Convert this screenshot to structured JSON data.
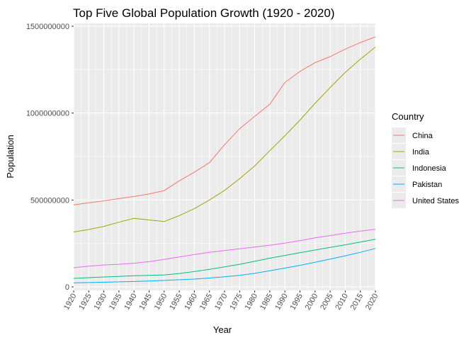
{
  "chart_data": {
    "type": "line",
    "title": "Top Five Global Population Growth (1920 - 2020)",
    "xlabel": "Year",
    "ylabel": "Population",
    "xlim": [
      1920,
      2020
    ],
    "ylim": [
      0,
      1500000000
    ],
    "x_ticks": [
      1920,
      1925,
      1930,
      1935,
      1940,
      1945,
      1950,
      1955,
      1960,
      1965,
      1970,
      1975,
      1980,
      1985,
      1990,
      1995,
      2000,
      2005,
      2010,
      2015,
      2020
    ],
    "y_ticks": [
      0,
      500000000,
      1000000000,
      1500000000
    ],
    "grid": true,
    "legend": {
      "title": "Country",
      "position": "right"
    },
    "x": [
      1920,
      1925,
      1930,
      1935,
      1940,
      1945,
      1950,
      1955,
      1960,
      1965,
      1970,
      1975,
      1980,
      1985,
      1990,
      1995,
      2000,
      2005,
      2010,
      2015,
      2020
    ],
    "series": [
      {
        "name": "China",
        "color": "#F8766D",
        "values": [
          472000000,
          484000000,
          495000000,
          508000000,
          520000000,
          535000000,
          554000000,
          610000000,
          660000000,
          715000000,
          818000000,
          910000000,
          981000000,
          1051000000,
          1176000000,
          1240000000,
          1290000000,
          1325000000,
          1368000000,
          1406000000,
          1439000000
        ]
      },
      {
        "name": "India",
        "color": "#A3A500",
        "values": [
          316000000,
          330000000,
          348000000,
          372000000,
          394000000,
          385000000,
          376000000,
          410000000,
          450000000,
          500000000,
          555000000,
          623000000,
          696000000,
          784000000,
          870000000,
          960000000,
          1056000000,
          1147000000,
          1234000000,
          1310000000,
          1380000000
        ]
      },
      {
        "name": "Indonesia",
        "color": "#00BF7D",
        "values": [
          49000000,
          53000000,
          57000000,
          60000000,
          64000000,
          66000000,
          69000000,
          77000000,
          88000000,
          101000000,
          115000000,
          130000000,
          147000000,
          165000000,
          181000000,
          197000000,
          212000000,
          227000000,
          242000000,
          258000000,
          274000000
        ]
      },
      {
        "name": "Pakistan",
        "color": "#00B0F6",
        "values": [
          23000000,
          25000000,
          27000000,
          29000000,
          31000000,
          34000000,
          37000000,
          41000000,
          45000000,
          51000000,
          58000000,
          66000000,
          78000000,
          93000000,
          108000000,
          124000000,
          142000000,
          160000000,
          179000000,
          199000000,
          221000000
        ]
      },
      {
        "name": "United States",
        "color": "#E76BF3",
        "values": [
          110000000,
          119000000,
          126000000,
          130000000,
          136000000,
          145000000,
          158000000,
          172000000,
          186000000,
          199000000,
          209000000,
          219000000,
          229000000,
          240000000,
          252000000,
          266000000,
          282000000,
          295000000,
          309000000,
          321000000,
          331000000
        ]
      }
    ]
  }
}
